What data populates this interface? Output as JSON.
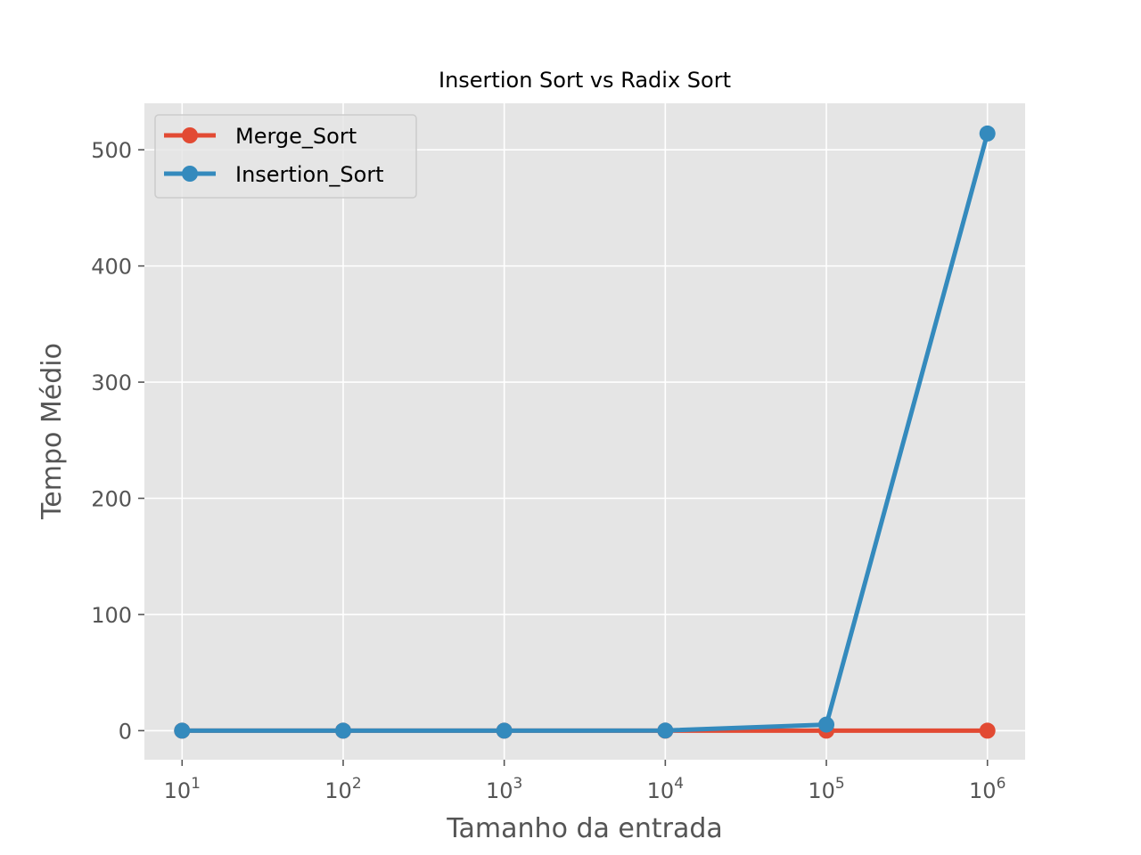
{
  "chart_data": {
    "type": "line",
    "title": "Insertion Sort vs Radix Sort",
    "xlabel": "Tamanho da entrada",
    "ylabel": "Tempo Médio",
    "x_scale": "log",
    "x": [
      10,
      100,
      1000,
      10000,
      100000,
      1000000
    ],
    "x_tick_base": "10",
    "x_tick_exponents": [
      "1",
      "2",
      "3",
      "4",
      "5",
      "6"
    ],
    "ylim": [
      -25,
      540
    ],
    "y_ticks": [
      0,
      100,
      200,
      300,
      400,
      500
    ],
    "y_tick_labels": [
      "0",
      "100",
      "200",
      "300",
      "400",
      "500"
    ],
    "grid": true,
    "legend_position": "upper-left",
    "series": [
      {
        "name": "Merge_Sort",
        "color": "#E24A33",
        "values": [
          0,
          0,
          0,
          0,
          0,
          0
        ]
      },
      {
        "name": "Insertion_Sort",
        "color": "#348ABD",
        "values": [
          0,
          0,
          0,
          0.1,
          5.2,
          514
        ]
      }
    ],
    "colors": {
      "plot_background": "#E5E5E5",
      "grid": "#FFFFFF"
    }
  }
}
